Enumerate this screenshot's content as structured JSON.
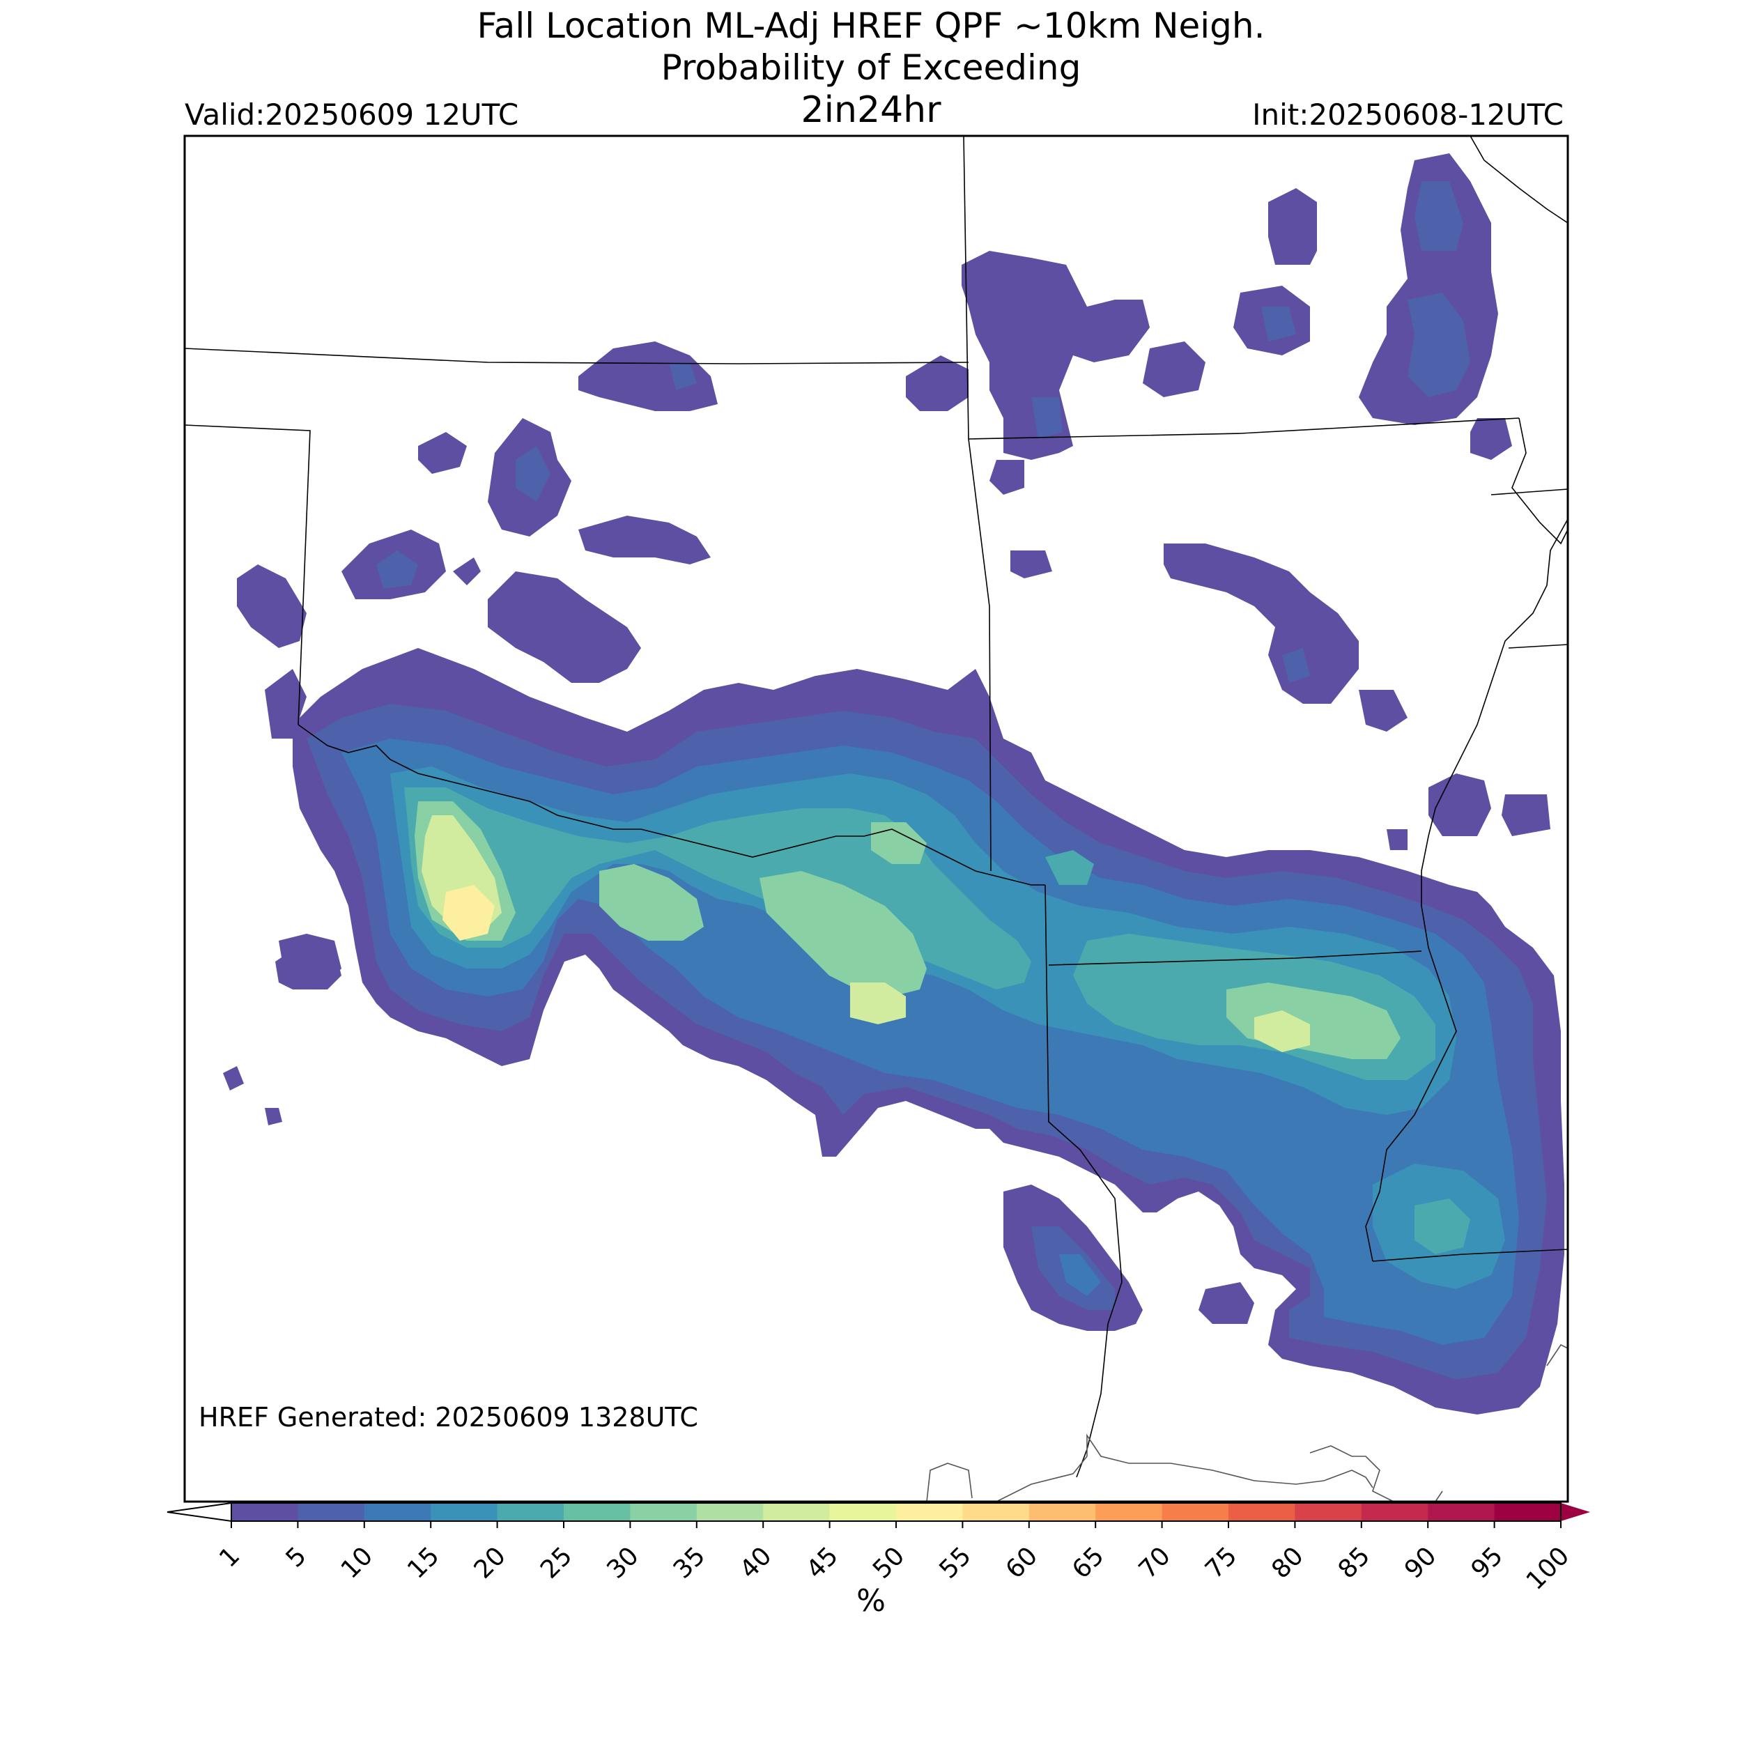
{
  "header": {
    "title_line1": "Fall Location ML-Adj HREF QPF ~10km Neigh.",
    "title_line2": "Probability of Exceeding",
    "title_line3": "2in24hr",
    "valid": "Valid:20250609 12UTC",
    "init": "Init:20250608-12UTC"
  },
  "annotation": {
    "generated": "HREF Generated: 20250609 1328UTC"
  },
  "colorbar": {
    "unit": "%",
    "ticks": [
      "1",
      "5",
      "10",
      "15",
      "20",
      "25",
      "30",
      "35",
      "40",
      "45",
      "50",
      "55",
      "60",
      "65",
      "70",
      "75",
      "80",
      "85",
      "90",
      "95",
      "100"
    ],
    "colors": [
      "#5e4fa2",
      "#4e61ab",
      "#3d7ab5",
      "#3a92b8",
      "#4aaaad",
      "#67c0a4",
      "#89d1a4",
      "#b0dfa3",
      "#d1ec9e",
      "#e9f59a",
      "#fcf0a0",
      "#fedb8a",
      "#fdbf6f",
      "#fc9d58",
      "#f67e4b",
      "#ea5f45",
      "#d84248",
      "#c6294e",
      "#b0174e",
      "#9e0142"
    ],
    "over_color": "#9e0142"
  },
  "map": {
    "levels": [
      1,
      5,
      10,
      15,
      20,
      30,
      40,
      50
    ]
  }
}
